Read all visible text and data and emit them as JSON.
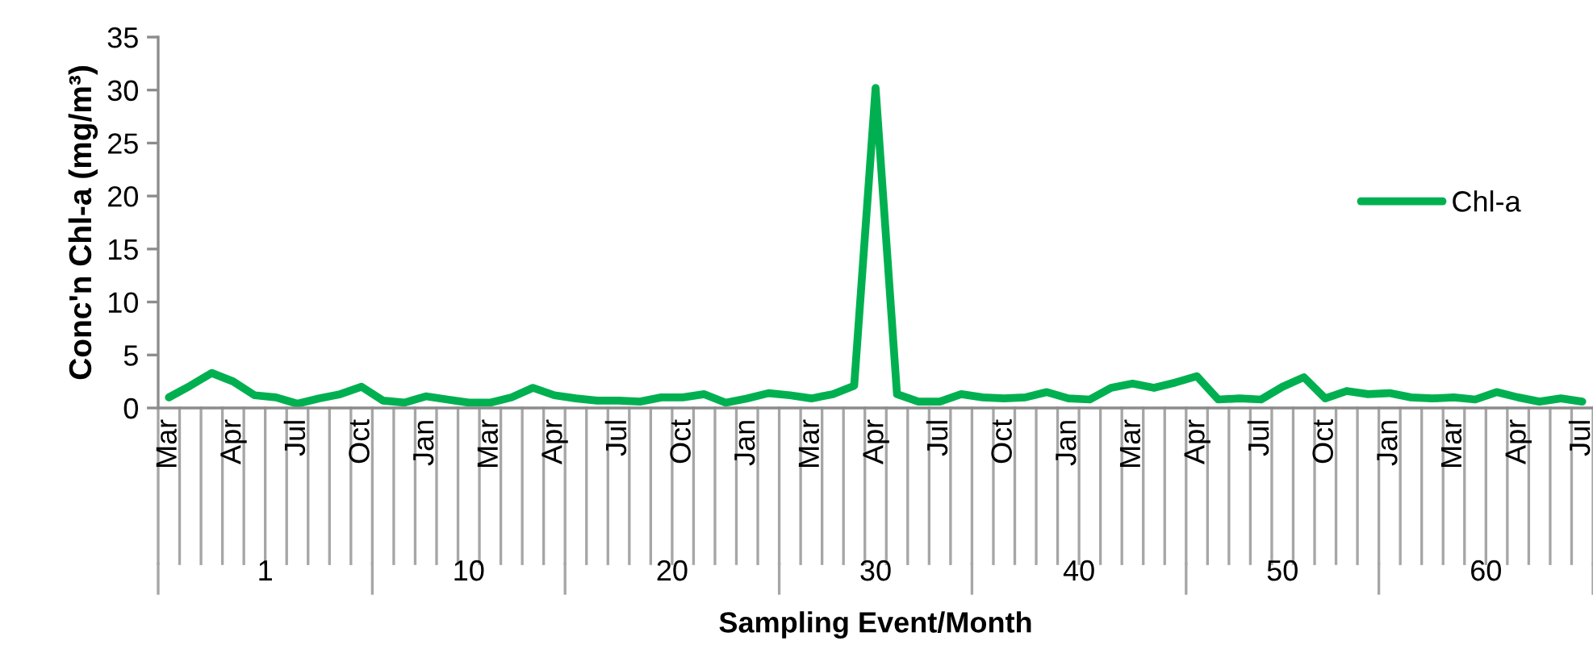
{
  "chart_data": {
    "type": "line",
    "xlabel": "Sampling Event/Month",
    "ylabel": "Conc'n Chl-a (mg/m³)",
    "categories": [
      "Mar",
      null,
      null,
      "Apr",
      null,
      null,
      "Jul",
      null,
      null,
      "Oct",
      null,
      null,
      "Jan",
      null,
      null,
      "Mar",
      null,
      null,
      "Apr",
      null,
      null,
      "Jul",
      null,
      null,
      "Oct",
      null,
      null,
      "Jan",
      null,
      null,
      "Mar",
      null,
      null,
      "Apr",
      null,
      null,
      "Jul",
      null,
      null,
      "Oct",
      null,
      null,
      "Jan",
      null,
      null,
      "Mar",
      null,
      null,
      "Apr",
      null,
      null,
      "Jul",
      null,
      null,
      "Oct",
      null,
      null,
      "Jan",
      null,
      null,
      "Mar",
      null,
      null,
      "Apr",
      null,
      null,
      "Jul"
    ],
    "series": [
      {
        "name": "Chl-a",
        "color": "#00b050",
        "values": [
          1.0,
          2.1,
          3.3,
          2.5,
          1.2,
          1.0,
          0.4,
          0.9,
          1.3,
          2.0,
          0.7,
          0.5,
          1.1,
          0.8,
          0.5,
          0.5,
          1.0,
          1.9,
          1.2,
          0.9,
          0.7,
          0.7,
          0.6,
          1.0,
          1.0,
          1.3,
          0.5,
          0.9,
          1.4,
          1.2,
          0.9,
          1.3,
          2.1,
          30.2,
          1.3,
          0.6,
          0.6,
          1.3,
          1.0,
          0.9,
          1.0,
          1.5,
          0.9,
          0.8,
          1.9,
          2.3,
          1.9,
          2.4,
          3.0,
          0.8,
          0.9,
          0.8,
          2.0,
          2.9,
          0.9,
          1.6,
          1.3,
          1.4,
          1.0,
          0.9,
          1.0,
          0.8,
          1.5,
          1.0,
          0.6,
          0.9,
          0.6
        ]
      }
    ],
    "annotations": [
      "1",
      "10",
      "20",
      "30",
      "40",
      "50",
      "60"
    ],
    "ylim": [
      0,
      35
    ],
    "yticks": [
      0,
      5,
      10,
      15,
      20,
      25,
      30,
      35
    ],
    "grid": false,
    "legend": "right",
    "marker": "none",
    "line_style": "solid"
  }
}
